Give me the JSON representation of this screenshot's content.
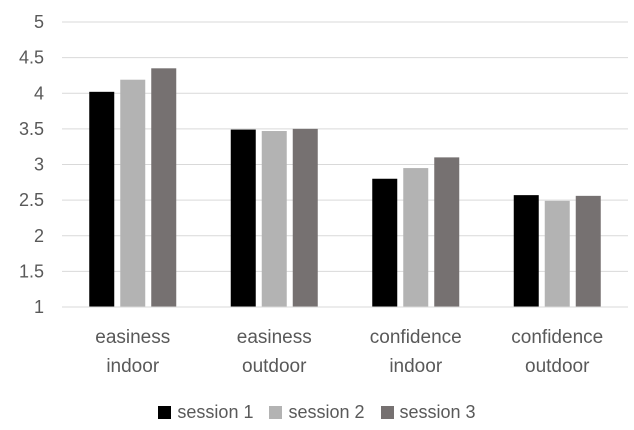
{
  "chart_data": {
    "type": "bar",
    "title": "",
    "xlabel": "",
    "ylabel": "",
    "ylim": [
      1,
      5
    ],
    "yticks": [
      "1",
      "1.5",
      "2",
      "2.5",
      "3",
      "3.5",
      "4",
      "4.5",
      "5"
    ],
    "grid": true,
    "legend_position": "bottom",
    "categories": [
      [
        "easiness",
        "indoor"
      ],
      [
        "easiness",
        "outdoor"
      ],
      [
        "confidence",
        "indoor"
      ],
      [
        "confidence",
        "outdoor"
      ]
    ],
    "series": [
      {
        "name": "session 1",
        "color": "#000000",
        "values": [
          4.02,
          3.49,
          2.8,
          2.57
        ]
      },
      {
        "name": "session 2",
        "color": "#b3b3b3",
        "values": [
          4.19,
          3.47,
          2.95,
          2.49
        ]
      },
      {
        "name": "session 3",
        "color": "#767171",
        "values": [
          4.35,
          3.5,
          3.1,
          2.56
        ]
      }
    ]
  }
}
